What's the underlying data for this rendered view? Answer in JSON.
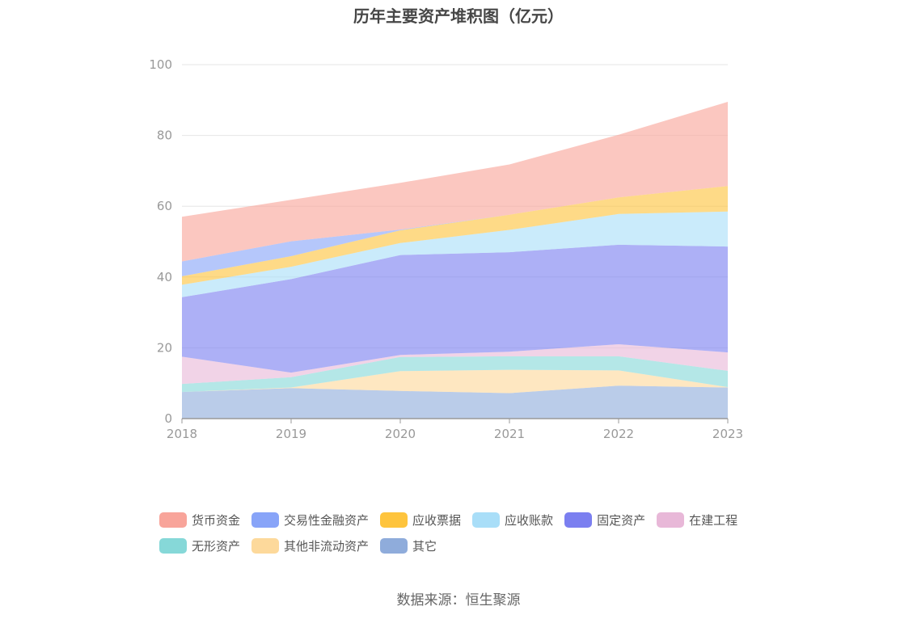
{
  "chart_data": {
    "type": "area",
    "stacked": true,
    "title": "历年主要资产堆积图（亿元）",
    "x": [
      "2018",
      "2019",
      "2020",
      "2021",
      "2022",
      "2023"
    ],
    "ylim": [
      0,
      100
    ],
    "yticks": [
      0,
      20,
      40,
      60,
      80,
      100
    ],
    "grid": true,
    "legend_position": "bottom",
    "series": [
      {
        "name": "其它",
        "color": "#8FACDB",
        "values": [
          7.5,
          8.6,
          7.8,
          7.2,
          9.3,
          8.8
        ]
      },
      {
        "name": "其他非流动资产",
        "color": "#FDD99B",
        "values": [
          0.0,
          0.2,
          5.6,
          6.6,
          4.3,
          0.1
        ]
      },
      {
        "name": "无形资产",
        "color": "#86D8D8",
        "values": [
          2.3,
          2.9,
          4.0,
          3.8,
          4.0,
          4.6
        ]
      },
      {
        "name": "在建工程",
        "color": "#E8B8D8",
        "values": [
          7.7,
          1.3,
          0.6,
          1.3,
          3.4,
          5.2
        ]
      },
      {
        "name": "固定资产",
        "color": "#7B7FF0",
        "values": [
          16.8,
          26.4,
          28.2,
          28.1,
          28.1,
          29.9
        ]
      },
      {
        "name": "应收账款",
        "color": "#A9DEF8",
        "values": [
          3.5,
          3.5,
          3.4,
          6.3,
          8.7,
          9.9
        ]
      },
      {
        "name": "应收票据",
        "color": "#FEC43D",
        "values": [
          2.4,
          3.0,
          3.6,
          4.3,
          4.7,
          7.2
        ]
      },
      {
        "name": "交易性金融资产",
        "color": "#88A4F8",
        "values": [
          4.2,
          4.2,
          0.2,
          0.0,
          0.0,
          0.0
        ]
      },
      {
        "name": "货币资金",
        "color": "#F8A49A",
        "values": [
          12.6,
          11.7,
          13.2,
          14.2,
          17.7,
          23.8
        ]
      }
    ]
  },
  "legend": [
    {
      "name": "货币资金",
      "color": "#F8A49A"
    },
    {
      "name": "交易性金融资产",
      "color": "#88A4F8"
    },
    {
      "name": "应收票据",
      "color": "#FEC43D"
    },
    {
      "name": "应收账款",
      "color": "#A9DEF8"
    },
    {
      "name": "固定资产",
      "color": "#7B7FF0"
    },
    {
      "name": "在建工程",
      "color": "#E8B8D8"
    },
    {
      "name": "无形资产",
      "color": "#86D8D8"
    },
    {
      "name": "其他非流动资产",
      "color": "#FDD99B"
    },
    {
      "name": "其它",
      "color": "#8FACDB"
    }
  ],
  "source": "数据来源：恒生聚源"
}
